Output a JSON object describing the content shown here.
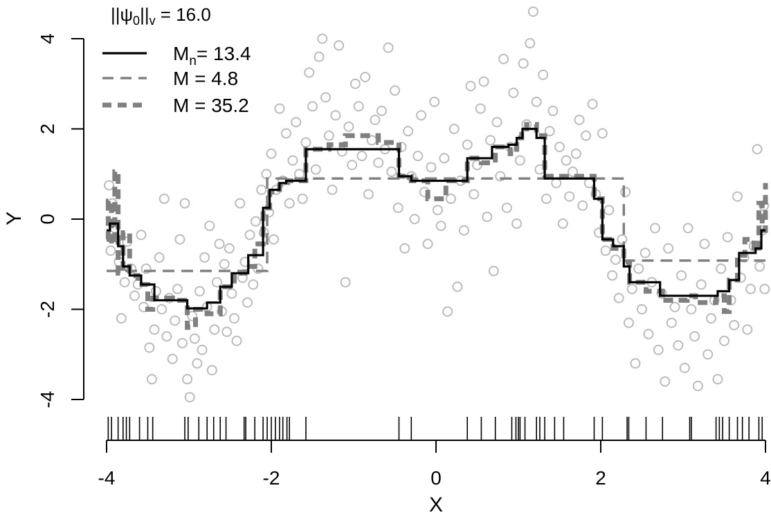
{
  "chart_data": {
    "type": "scatter",
    "title": "",
    "xlabel": "X",
    "ylabel": "Y",
    "xlim": [
      -4,
      4
    ],
    "ylim": [
      -4,
      4
    ],
    "x_ticks": [
      -4,
      -2,
      0,
      2,
      4
    ],
    "y_ticks": [
      -4,
      -2,
      0,
      2,
      4
    ],
    "x_tick_labels": [
      "-4",
      "-2",
      "0",
      "2",
      "4"
    ],
    "y_tick_labels": [
      "-4",
      "-2",
      "0",
      "2",
      "4"
    ],
    "grid": false,
    "legend": {
      "position": "top-left",
      "title": "||ψ0||v = 16.0",
      "entries": [
        {
          "label": "Mn= 13.4",
          "style": "solid",
          "color": "#000000"
        },
        {
          "label": "M = 4.8",
          "style": "dashed",
          "color": "#808080"
        },
        {
          "label": "M = 35.2",
          "style": "thick-dashed",
          "color": "#808080"
        }
      ]
    },
    "points_color": "#bbbbbb",
    "points": [
      [
        -3.97,
        0.75
      ],
      [
        -3.95,
        -0.7
      ],
      [
        -3.93,
        0.35
      ],
      [
        -3.9,
        -0.2
      ],
      [
        -3.85,
        -0.95
      ],
      [
        -3.82,
        -2.2
      ],
      [
        -3.78,
        -1.4
      ],
      [
        -3.75,
        -0.5
      ],
      [
        -3.7,
        -1.1
      ],
      [
        -3.66,
        -1.7
      ],
      [
        -3.62,
        -1.45
      ],
      [
        -3.58,
        -0.35
      ],
      [
        -3.55,
        -1.95
      ],
      [
        -3.52,
        -1.1
      ],
      [
        -3.48,
        -2.85
      ],
      [
        -3.45,
        -3.55
      ],
      [
        -3.42,
        -2.45
      ],
      [
        -3.4,
        -1.6
      ],
      [
        -3.36,
        -0.85
      ],
      [
        -3.33,
        -2.0
      ],
      [
        -3.3,
        0.45
      ],
      [
        -3.27,
        -2.6
      ],
      [
        -3.24,
        -1.75
      ],
      [
        -3.2,
        -3.1
      ],
      [
        -3.17,
        -2.25
      ],
      [
        -3.14,
        -1.55
      ],
      [
        -3.11,
        -0.45
      ],
      [
        -3.08,
        -2.75
      ],
      [
        -3.05,
        0.35
      ],
      [
        -3.02,
        -3.55
      ],
      [
        -2.99,
        -3.95
      ],
      [
        -2.96,
        -2.15
      ],
      [
        -2.93,
        -2.65
      ],
      [
        -2.9,
        -3.2
      ],
      [
        -2.87,
        -1.6
      ],
      [
        -2.84,
        -2.9
      ],
      [
        -2.81,
        -0.85
      ],
      [
        -2.78,
        -1.95
      ],
      [
        -2.75,
        -0.15
      ],
      [
        -2.72,
        -3.35
      ],
      [
        -2.69,
        -2.45
      ],
      [
        -2.66,
        -1.4
      ],
      [
        -2.63,
        -0.55
      ],
      [
        -2.6,
        -2.05
      ],
      [
        -2.57,
        -1.0
      ],
      [
        -2.54,
        -2.5
      ],
      [
        -2.51,
        -0.65
      ],
      [
        -2.48,
        -1.65
      ],
      [
        -2.45,
        -2.2
      ],
      [
        -2.42,
        -2.7
      ],
      [
        -2.38,
        0.35
      ],
      [
        -2.35,
        -1.3
      ],
      [
        -2.32,
        -0.95
      ],
      [
        -2.29,
        -1.85
      ],
      [
        -2.26,
        -0.35
      ],
      [
        -2.22,
        -1.45
      ],
      [
        -2.19,
        -0.05
      ],
      [
        -2.16,
        -1.1
      ],
      [
        -2.12,
        0.65
      ],
      [
        -2.09,
        -0.3
      ],
      [
        -2.06,
        1.0
      ],
      [
        -2.03,
        0.15
      ],
      [
        -2.0,
        1.45
      ],
      [
        -1.97,
        -0.45
      ],
      [
        -1.94,
        0.65
      ],
      [
        -1.9,
        2.45
      ],
      [
        -1.86,
        0.85
      ],
      [
        -1.82,
        1.9
      ],
      [
        -1.78,
        0.35
      ],
      [
        -1.74,
        1.3
      ],
      [
        -1.7,
        2.15
      ],
      [
        -1.66,
        1.0
      ],
      [
        -1.62,
        0.45
      ],
      [
        -1.58,
        1.7
      ],
      [
        -1.54,
        3.25
      ],
      [
        -1.5,
        2.5
      ],
      [
        -1.46,
        1.1
      ],
      [
        -1.42,
        3.6
      ],
      [
        -1.38,
        4.0
      ],
      [
        -1.34,
        2.7
      ],
      [
        -1.3,
        1.85
      ],
      [
        -1.26,
        0.65
      ],
      [
        -1.22,
        2.3
      ],
      [
        -1.18,
        3.85
      ],
      [
        -1.14,
        1.5
      ],
      [
        -1.1,
        -1.4
      ],
      [
        -1.06,
        2.05
      ],
      [
        -1.02,
        1.2
      ],
      [
        -0.98,
        3.0
      ],
      [
        -0.94,
        2.5
      ],
      [
        -0.9,
        1.4
      ],
      [
        -0.86,
        3.15
      ],
      [
        -0.82,
        0.55
      ],
      [
        -0.78,
        1.75
      ],
      [
        -0.74,
        2.2
      ],
      [
        -0.7,
        1.25
      ],
      [
        -0.66,
        2.4
      ],
      [
        -0.62,
        1.55
      ],
      [
        -0.58,
        3.8
      ],
      [
        -0.54,
        1.05
      ],
      [
        -0.5,
        2.85
      ],
      [
        -0.46,
        0.25
      ],
      [
        -0.42,
        1.6
      ],
      [
        -0.38,
        -0.65
      ],
      [
        -0.34,
        1.95
      ],
      [
        -0.3,
        0.95
      ],
      [
        -0.26,
        0.0
      ],
      [
        -0.22,
        1.4
      ],
      [
        -0.18,
        2.3
      ],
      [
        -0.14,
        0.6
      ],
      [
        -0.1,
        -0.55
      ],
      [
        -0.06,
        1.15
      ],
      [
        -0.02,
        2.6
      ],
      [
        0.02,
        0.2
      ],
      [
        0.06,
        -0.15
      ],
      [
        0.1,
        1.35
      ],
      [
        0.14,
        -2.05
      ],
      [
        0.18,
        0.45
      ],
      [
        0.22,
        2.0
      ],
      [
        0.26,
        -1.5
      ],
      [
        0.3,
        0.85
      ],
      [
        0.34,
        -0.25
      ],
      [
        0.38,
        1.65
      ],
      [
        0.42,
        2.95
      ],
      [
        0.46,
        0.55
      ],
      [
        0.5,
        1.2
      ],
      [
        0.54,
        2.45
      ],
      [
        0.58,
        3.05
      ],
      [
        0.62,
        0.05
      ],
      [
        0.66,
        1.75
      ],
      [
        0.7,
        -1.15
      ],
      [
        0.74,
        2.15
      ],
      [
        0.78,
        0.95
      ],
      [
        0.82,
        3.55
      ],
      [
        0.86,
        0.25
      ],
      [
        0.9,
        1.6
      ],
      [
        0.94,
        2.8
      ],
      [
        0.98,
        -0.1
      ],
      [
        1.02,
        1.3
      ],
      [
        1.06,
        3.45
      ],
      [
        1.1,
        2.1
      ],
      [
        1.14,
        3.9
      ],
      [
        1.18,
        4.6
      ],
      [
        1.22,
        2.6
      ],
      [
        1.26,
        1.1
      ],
      [
        1.3,
        3.2
      ],
      [
        1.34,
        0.45
      ],
      [
        1.38,
        1.95
      ],
      [
        1.42,
        2.4
      ],
      [
        1.46,
        0.8
      ],
      [
        1.5,
        1.6
      ],
      [
        1.54,
        -0.1
      ],
      [
        1.58,
        1.3
      ],
      [
        1.62,
        0.5
      ],
      [
        1.66,
        1.05
      ],
      [
        1.7,
        1.45
      ],
      [
        1.74,
        2.2
      ],
      [
        1.78,
        0.3
      ],
      [
        1.82,
        1.85
      ],
      [
        1.86,
        0.8
      ],
      [
        1.9,
        2.55
      ],
      [
        1.94,
        0.55
      ],
      [
        1.98,
        -0.3
      ],
      [
        2.02,
        1.9
      ],
      [
        2.06,
        -0.7
      ],
      [
        2.1,
        0.2
      ],
      [
        2.14,
        -1.25
      ],
      [
        2.18,
        -0.9
      ],
      [
        2.22,
        -1.75
      ],
      [
        2.26,
        -0.45
      ],
      [
        2.3,
        0.6
      ],
      [
        2.34,
        -2.3
      ],
      [
        2.38,
        -1.55
      ],
      [
        2.42,
        -3.2
      ],
      [
        2.46,
        -1.1
      ],
      [
        2.5,
        -2.0
      ],
      [
        2.54,
        -0.75
      ],
      [
        2.58,
        -2.55
      ],
      [
        2.62,
        -1.4
      ],
      [
        2.66,
        -0.2
      ],
      [
        2.7,
        -2.9
      ],
      [
        2.74,
        -1.65
      ],
      [
        2.78,
        -3.6
      ],
      [
        2.82,
        -0.65
      ],
      [
        2.86,
        -2.3
      ],
      [
        2.9,
        -1.95
      ],
      [
        2.94,
        -2.8
      ],
      [
        2.98,
        -1.25
      ],
      [
        3.02,
        -3.3
      ],
      [
        3.06,
        -0.2
      ],
      [
        3.1,
        -2.0
      ],
      [
        3.14,
        -2.6
      ],
      [
        3.18,
        -3.7
      ],
      [
        3.22,
        -1.45
      ],
      [
        3.26,
        -0.55
      ],
      [
        3.3,
        -3.0
      ],
      [
        3.34,
        -2.2
      ],
      [
        3.38,
        -1.8
      ],
      [
        3.42,
        -3.55
      ],
      [
        3.46,
        -1.1
      ],
      [
        3.5,
        -2.7
      ],
      [
        3.54,
        -0.4
      ],
      [
        3.58,
        -1.8
      ],
      [
        3.62,
        -2.35
      ],
      [
        3.66,
        0.5
      ],
      [
        3.7,
        -1.3
      ],
      [
        3.74,
        -0.85
      ],
      [
        3.78,
        -2.45
      ],
      [
        3.82,
        -1.55
      ],
      [
        3.86,
        -0.6
      ],
      [
        3.9,
        1.55
      ],
      [
        3.93,
        -1.05
      ],
      [
        3.96,
        -0.25
      ],
      [
        3.98,
        0.3
      ],
      [
        3.99,
        -1.55
      ]
    ],
    "rug_x": [
      -3.98,
      -3.94,
      -3.86,
      -3.8,
      -3.76,
      -3.72,
      -3.6,
      -3.5,
      -3.44,
      -3.05,
      -3.01,
      -2.88,
      -2.78,
      -2.7,
      -2.62,
      -2.55,
      -2.33,
      -2.31,
      -2.2,
      -2.1,
      -2.05,
      -2.0,
      -1.95,
      -1.9,
      -1.86,
      -1.81,
      -1.78,
      -1.58,
      -0.45,
      -0.3,
      0.38,
      0.55,
      0.72,
      0.92,
      0.97,
      1.0,
      1.02,
      1.08,
      1.22,
      1.26,
      1.32,
      1.44,
      1.55,
      1.92,
      2.02,
      2.32,
      2.34,
      2.55,
      2.75,
      3.08,
      3.1,
      3.4,
      3.44,
      3.48,
      3.56,
      3.66,
      3.72,
      3.8,
      3.92,
      3.96
    ],
    "series": [
      {
        "name": "Mn= 13.4",
        "style": "solid",
        "color": "#000000",
        "steps": [
          [
            -4.0,
            -0.25
          ],
          [
            -3.96,
            -0.1
          ],
          [
            -3.86,
            -0.6
          ],
          [
            -3.8,
            -1.05
          ],
          [
            -3.72,
            -1.25
          ],
          [
            -3.58,
            -1.45
          ],
          [
            -3.42,
            -1.8
          ],
          [
            -3.02,
            -1.98
          ],
          [
            -2.78,
            -1.85
          ],
          [
            -2.62,
            -1.5
          ],
          [
            -2.48,
            -1.2
          ],
          [
            -2.28,
            -0.8
          ],
          [
            -2.1,
            0.25
          ],
          [
            -2.02,
            0.65
          ],
          [
            -1.9,
            0.8
          ],
          [
            -1.82,
            0.85
          ],
          [
            -1.58,
            1.55
          ],
          [
            -0.45,
            0.95
          ],
          [
            -0.3,
            0.85
          ],
          [
            0.38,
            1.35
          ],
          [
            0.68,
            1.6
          ],
          [
            0.88,
            1.65
          ],
          [
            0.98,
            1.8
          ],
          [
            1.05,
            2.0
          ],
          [
            1.22,
            1.8
          ],
          [
            1.32,
            0.9
          ],
          [
            1.92,
            0.45
          ],
          [
            2.02,
            -0.45
          ],
          [
            2.15,
            -0.6
          ],
          [
            2.28,
            -1.05
          ],
          [
            2.35,
            -1.4
          ],
          [
            2.72,
            -1.7
          ],
          [
            3.42,
            -1.6
          ],
          [
            3.56,
            -1.35
          ],
          [
            3.68,
            -0.75
          ],
          [
            3.88,
            -0.65
          ],
          [
            3.95,
            -0.25
          ],
          [
            4.0,
            -0.25
          ]
        ]
      },
      {
        "name": "M = 4.8",
        "style": "dashed",
        "color": "#808080",
        "steps": [
          [
            -4.0,
            -1.15
          ],
          [
            -2.3,
            -1.15
          ],
          [
            -2.05,
            0.9
          ],
          [
            2.02,
            0.9
          ],
          [
            2.28,
            -0.92
          ],
          [
            4.0,
            -0.92
          ]
        ]
      },
      {
        "name": "M = 35.2",
        "style": "thick-dashed",
        "color": "#808080",
        "steps": [
          [
            -4.0,
            -0.45
          ],
          [
            -3.98,
            0.4
          ],
          [
            -3.94,
            -0.55
          ],
          [
            -3.9,
            1.05
          ],
          [
            -3.86,
            -1.2
          ],
          [
            -3.8,
            -0.3
          ],
          [
            -3.72,
            -1.25
          ],
          [
            -3.62,
            -1.45
          ],
          [
            -3.5,
            -2.0
          ],
          [
            -3.44,
            -1.75
          ],
          [
            -3.2,
            -1.8
          ],
          [
            -3.02,
            -2.4
          ],
          [
            -2.92,
            -2.0
          ],
          [
            -2.78,
            -2.1
          ],
          [
            -2.62,
            -1.5
          ],
          [
            -2.45,
            -1.2
          ],
          [
            -2.32,
            -1.05
          ],
          [
            -2.2,
            -0.55
          ],
          [
            -2.1,
            0.25
          ],
          [
            -2.02,
            0.6
          ],
          [
            -1.9,
            0.75
          ],
          [
            -1.8,
            0.85
          ],
          [
            -1.58,
            1.55
          ],
          [
            -1.3,
            1.65
          ],
          [
            -1.1,
            1.85
          ],
          [
            -0.7,
            1.7
          ],
          [
            -0.45,
            0.95
          ],
          [
            -0.3,
            0.85
          ],
          [
            -0.1,
            0.45
          ],
          [
            0.12,
            0.85
          ],
          [
            0.38,
            1.35
          ],
          [
            0.55,
            1.25
          ],
          [
            0.72,
            1.6
          ],
          [
            0.9,
            1.45
          ],
          [
            0.98,
            1.8
          ],
          [
            1.04,
            2.0
          ],
          [
            1.1,
            2.1
          ],
          [
            1.22,
            1.85
          ],
          [
            1.32,
            0.95
          ],
          [
            1.92,
            0.45
          ],
          [
            2.02,
            -0.45
          ],
          [
            2.15,
            -0.65
          ],
          [
            2.28,
            -0.95
          ],
          [
            2.35,
            -1.4
          ],
          [
            2.55,
            -1.6
          ],
          [
            2.75,
            -1.8
          ],
          [
            3.05,
            -1.7
          ],
          [
            3.15,
            -1.85
          ],
          [
            3.4,
            -1.7
          ],
          [
            3.5,
            -2.05
          ],
          [
            3.56,
            -1.35
          ],
          [
            3.66,
            -0.8
          ],
          [
            3.75,
            -0.45
          ],
          [
            3.86,
            -0.7
          ],
          [
            3.92,
            0.35
          ],
          [
            3.96,
            -0.25
          ],
          [
            4.0,
            0.8
          ]
        ]
      }
    ]
  }
}
